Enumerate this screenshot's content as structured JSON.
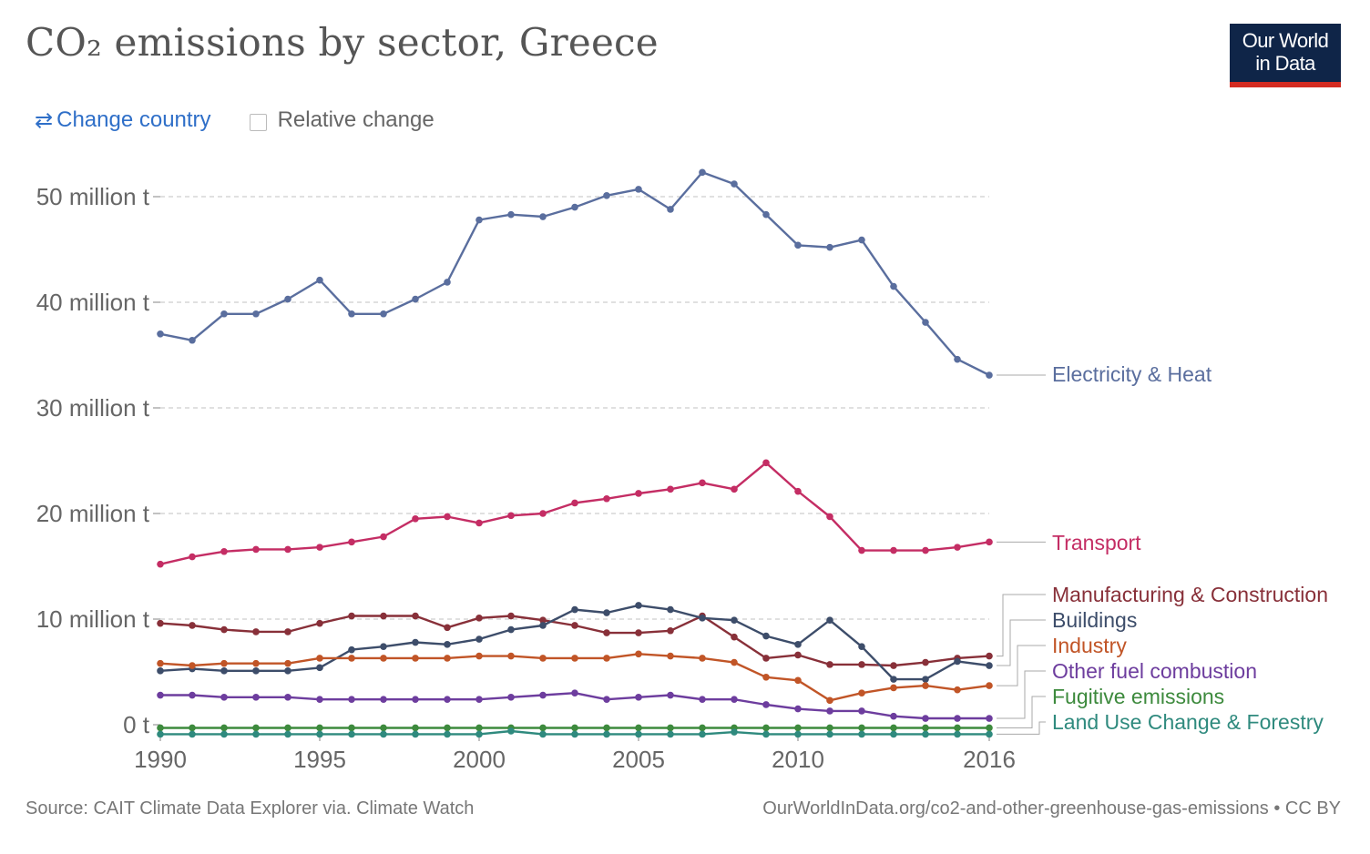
{
  "title": "CO₂ emissions by sector, Greece",
  "logo": {
    "line1": "Our World",
    "line2": "in Data"
  },
  "controls": {
    "change_country": "Change country",
    "relative_change": "Relative change"
  },
  "footer": {
    "source": "Source: CAIT Climate Data Explorer via. Climate Watch",
    "credit": "OurWorldInData.org/co2-and-other-greenhouse-gas-emissions • CC BY"
  },
  "colors": {
    "logo_bg": "#0f2548",
    "logo_accent": "#d42b21",
    "link": "#2f6fc8"
  },
  "chart_data": {
    "type": "line",
    "title": "CO₂ emissions by sector, Greece",
    "xlabel": "",
    "ylabel": "",
    "xlim": [
      1990,
      2016
    ],
    "ylim": [
      -1,
      52
    ],
    "grid": true,
    "x_ticks": [
      "1990",
      "1995",
      "2000",
      "2005",
      "2010",
      "2016"
    ],
    "y_ticks": [
      {
        "value": 0,
        "label": "0 t"
      },
      {
        "value": 10,
        "label": "10 million t"
      },
      {
        "value": 20,
        "label": "20 million t"
      },
      {
        "value": 30,
        "label": "30 million t"
      },
      {
        "value": 40,
        "label": "40 million t"
      },
      {
        "value": 50,
        "label": "50 million t"
      }
    ],
    "x": [
      1990,
      1991,
      1992,
      1993,
      1994,
      1995,
      1996,
      1997,
      1998,
      1999,
      2000,
      2001,
      2002,
      2003,
      2004,
      2005,
      2006,
      2007,
      2008,
      2009,
      2010,
      2011,
      2012,
      2013,
      2014,
      2015,
      2016
    ],
    "series": [
      {
        "name": "Electricity & Heat",
        "color": "#5a6e9e",
        "values": [
          37.0,
          36.4,
          38.9,
          38.9,
          40.3,
          42.1,
          38.9,
          38.9,
          40.3,
          41.9,
          47.8,
          48.3,
          48.1,
          49.0,
          50.1,
          50.7,
          48.8,
          52.3,
          51.2,
          48.3,
          45.4,
          45.2,
          45.9,
          41.5,
          38.1,
          34.6,
          33.1
        ]
      },
      {
        "name": "Transport",
        "color": "#c42d64",
        "values": [
          15.2,
          15.9,
          16.4,
          16.6,
          16.6,
          16.8,
          17.3,
          17.8,
          19.5,
          19.7,
          19.1,
          19.8,
          20.0,
          21.0,
          21.4,
          21.9,
          22.3,
          22.9,
          22.3,
          24.8,
          22.1,
          19.7,
          16.5,
          16.5,
          16.5,
          16.8,
          17.3
        ]
      },
      {
        "name": "Manufacturing & Construction",
        "color": "#883039",
        "values": [
          9.6,
          9.4,
          9.0,
          8.8,
          8.8,
          9.6,
          10.3,
          10.3,
          10.3,
          9.2,
          10.1,
          10.3,
          9.9,
          9.4,
          8.7,
          8.7,
          8.9,
          10.3,
          8.3,
          6.3,
          6.6,
          5.7,
          5.7,
          5.6,
          5.9,
          6.3,
          6.5
        ]
      },
      {
        "name": "Buildings",
        "color": "#3d4d6a",
        "values": [
          5.1,
          5.3,
          5.1,
          5.1,
          5.1,
          5.4,
          7.1,
          7.4,
          7.8,
          7.6,
          8.1,
          9.0,
          9.4,
          10.9,
          10.6,
          11.3,
          10.9,
          10.1,
          9.9,
          8.4,
          7.6,
          9.9,
          7.4,
          4.3,
          4.3,
          6.0,
          5.6
        ]
      },
      {
        "name": "Industry",
        "color": "#c15527",
        "values": [
          5.8,
          5.6,
          5.8,
          5.8,
          5.8,
          6.3,
          6.3,
          6.3,
          6.3,
          6.3,
          6.5,
          6.5,
          6.3,
          6.3,
          6.3,
          6.7,
          6.5,
          6.3,
          5.9,
          4.5,
          4.2,
          2.3,
          3.0,
          3.5,
          3.7,
          3.3,
          3.7
        ]
      },
      {
        "name": "Other fuel combustion",
        "color": "#6d3d9e",
        "values": [
          2.8,
          2.8,
          2.6,
          2.6,
          2.6,
          2.4,
          2.4,
          2.4,
          2.4,
          2.4,
          2.4,
          2.6,
          2.8,
          3.0,
          2.4,
          2.6,
          2.8,
          2.4,
          2.4,
          1.9,
          1.5,
          1.3,
          1.3,
          0.8,
          0.6,
          0.6,
          0.6
        ]
      },
      {
        "name": "Fugitive emissions",
        "color": "#3d8a3d",
        "values": [
          -0.3,
          -0.3,
          -0.3,
          -0.3,
          -0.3,
          -0.3,
          -0.3,
          -0.3,
          -0.3,
          -0.3,
          -0.3,
          -0.3,
          -0.3,
          -0.3,
          -0.3,
          -0.3,
          -0.3,
          -0.3,
          -0.3,
          -0.3,
          -0.3,
          -0.3,
          -0.3,
          -0.3,
          -0.3,
          -0.3,
          -0.3
        ]
      },
      {
        "name": "Land Use Change & Forestry",
        "color": "#2f8a7e",
        "values": [
          -0.9,
          -0.9,
          -0.9,
          -0.9,
          -0.9,
          -0.9,
          -0.9,
          -0.9,
          -0.9,
          -0.9,
          -0.9,
          -0.6,
          -0.9,
          -0.9,
          -0.9,
          -0.9,
          -0.9,
          -0.9,
          -0.7,
          -0.9,
          -0.9,
          -0.9,
          -0.9,
          -0.9,
          -0.9,
          -0.9,
          -0.9
        ]
      }
    ]
  }
}
